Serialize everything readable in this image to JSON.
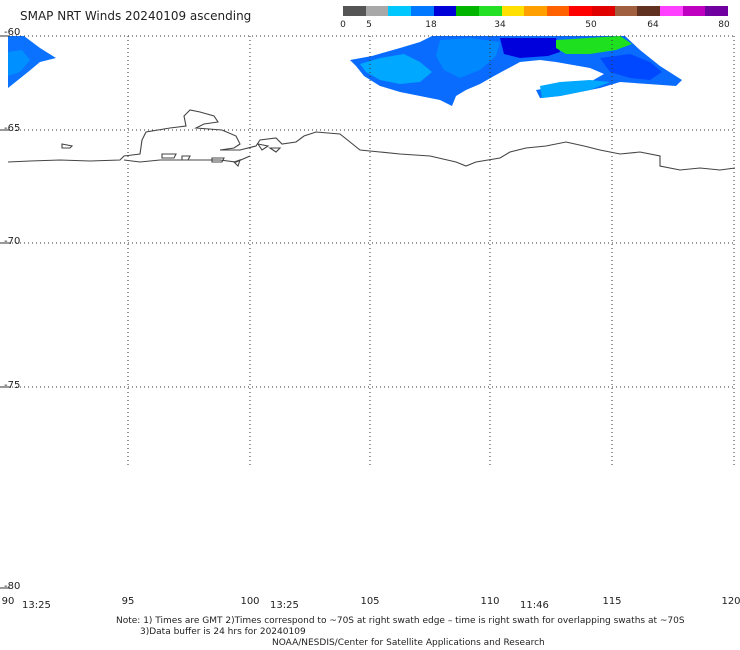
{
  "title": "SMAP NRT Winds 20240109 ascending",
  "colorbar": {
    "ticks": [
      "0",
      "5",
      "18",
      "34",
      "50",
      "64",
      "80"
    ],
    "segments": [
      "#555555",
      "#a8a8a8",
      "#00c8ff",
      "#0078ff",
      "#0000d8",
      "#00b400",
      "#24e024",
      "#ffe000",
      "#ffa000",
      "#ff6000",
      "#ff0000",
      "#e00000",
      "#a06040",
      "#603020",
      "#ff40ff",
      "#c000c0",
      "#7000a0"
    ]
  },
  "map": {
    "lat_labels": [
      "-60",
      "-65",
      "-70",
      "-75",
      "-80"
    ],
    "lon_labels": [
      "90",
      "95",
      "100",
      "105",
      "110",
      "115",
      "120"
    ],
    "time_labels": [
      "13:25",
      "13:25",
      "11:46"
    ]
  },
  "notes": {
    "line1": "Note: 1) Times are GMT  2)Times correspond to ~70S at right swath edge – time is right swath for overlapping swaths at ~70S",
    "line2": "3)Data buffer is 24 hrs for 20240109",
    "line3": "NOAA/NESDIS/Center for Satellite Applications and Research"
  }
}
